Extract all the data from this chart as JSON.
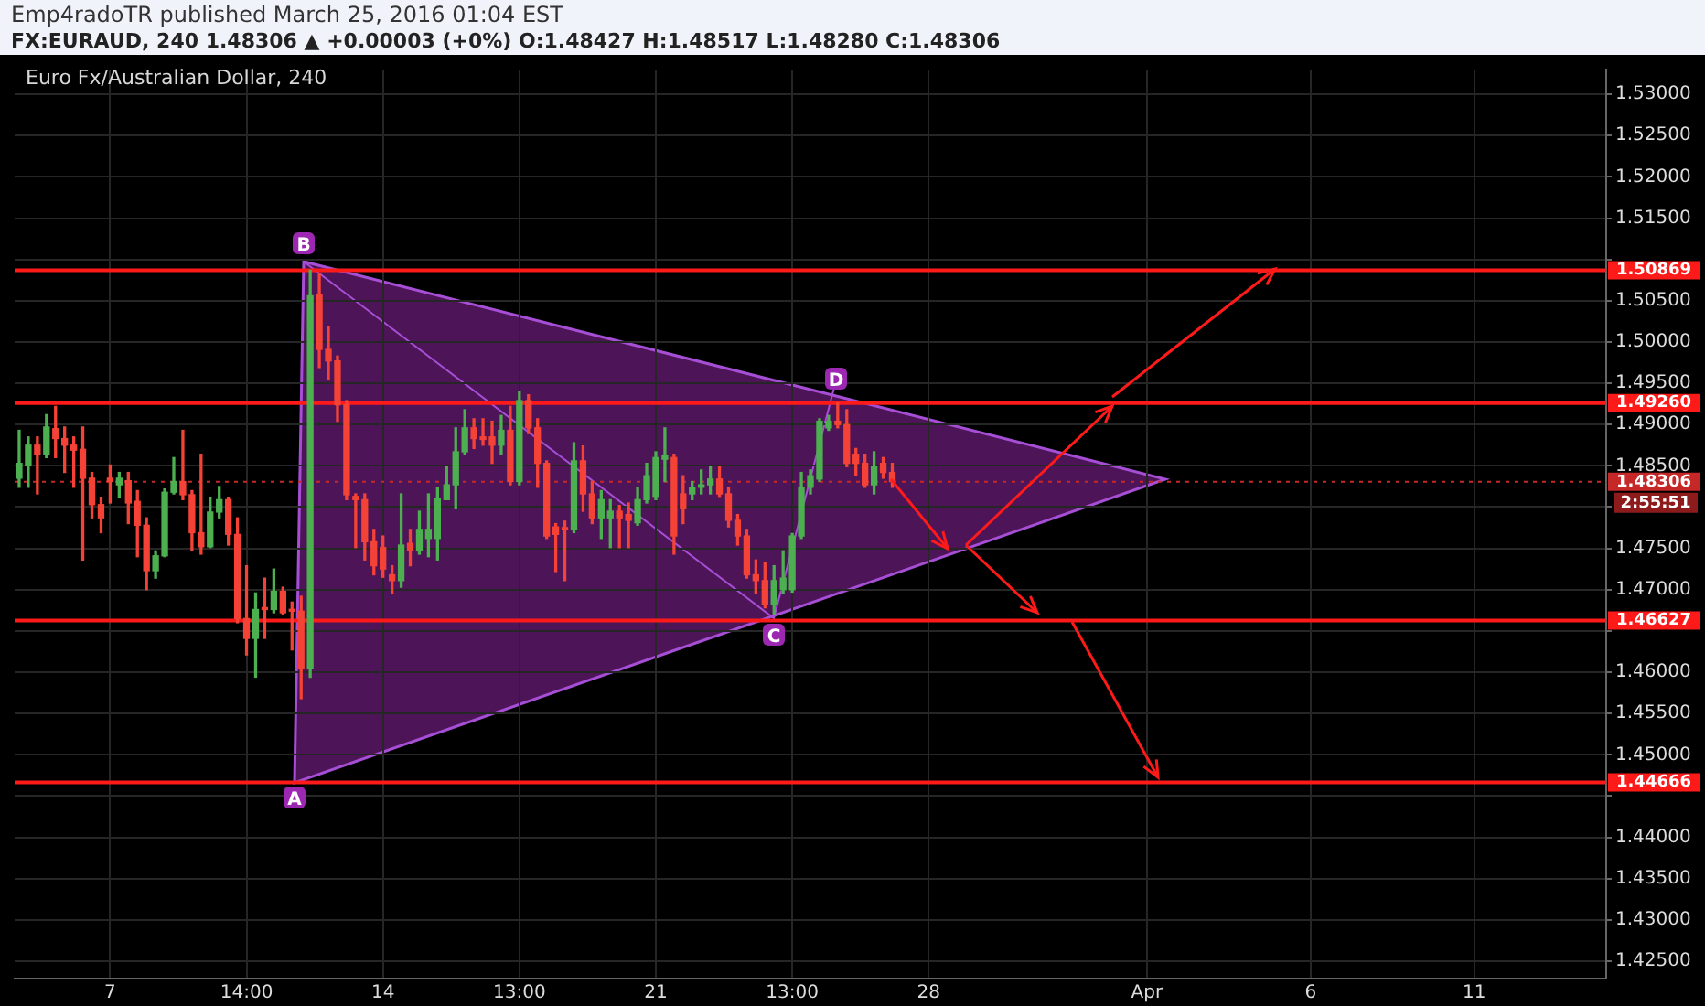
{
  "chart_data": {
    "type": "candlestick",
    "title": "Euro Fx/Australian Dollar, 240",
    "subtitle": "FX:EURAUD, 240 1.48306 ▲ +0.00003 (+0%) O:1.48427 H:1.48517 L:1.48280 C:1.48306",
    "annotations": [
      "Emp4radoTR published March 25, 2016 01:04 EST",
      "2:55:51",
      "A",
      "B",
      "C",
      "D"
    ],
    "categories": [
      null,
      null,
      null,
      null,
      null,
      null,
      null,
      null,
      null,
      null,
      "7",
      null,
      null,
      null,
      null,
      null,
      null,
      null,
      null,
      null,
      null,
      null,
      null,
      null,
      null,
      "14:00",
      null,
      null,
      null,
      null,
      null,
      null,
      null,
      null,
      null,
      null,
      null,
      null,
      null,
      null,
      "14",
      null,
      null,
      null,
      null,
      null,
      null,
      null,
      null,
      null,
      null,
      null,
      null,
      null,
      null,
      "13:00",
      null,
      null,
      null,
      null,
      null,
      null,
      null,
      null,
      null,
      null,
      null,
      null,
      null,
      null,
      "21",
      null,
      null,
      null,
      null,
      null,
      null,
      null,
      null,
      null,
      null,
      null,
      null,
      null,
      null,
      "13:00",
      null,
      null,
      null,
      null,
      null,
      null,
      null,
      null,
      null,
      null,
      null,
      null,
      null,
      null,
      "28",
      null,
      null,
      null,
      null,
      null,
      null,
      null,
      null,
      null,
      null,
      null,
      null,
      null,
      null,
      null,
      null,
      null,
      null,
      null,
      null,
      null,
      null,
      null,
      "Apr",
      null,
      null,
      null,
      null,
      null,
      null,
      null,
      null,
      null,
      null,
      null,
      null,
      null,
      null,
      null,
      null,
      null,
      "6",
      null,
      null,
      null,
      null,
      null,
      null,
      null,
      null,
      null,
      null,
      null,
      null,
      null,
      null,
      null,
      null,
      null,
      "11",
      null,
      null,
      null,
      null,
      null,
      null,
      null,
      null,
      null,
      null,
      null,
      null,
      null,
      null
    ],
    "ohlc": [
      [
        1.4835,
        1.4893,
        1.4824,
        1.4853
      ],
      [
        1.4851,
        1.4885,
        1.4824,
        1.4875
      ],
      [
        1.4875,
        1.4885,
        1.4816,
        1.4864
      ],
      [
        1.4864,
        1.4912,
        1.486,
        1.4897
      ],
      [
        1.4895,
        1.4922,
        1.486,
        1.4883
      ],
      [
        1.4883,
        1.4897,
        1.4842,
        1.4875
      ],
      [
        1.4875,
        1.4885,
        1.4824,
        1.4869
      ],
      [
        1.487,
        1.4897,
        1.4736,
        1.4835
      ],
      [
        1.4835,
        1.4842,
        1.4787,
        1.4803
      ],
      [
        1.4803,
        1.4812,
        1.4769,
        1.4787
      ],
      [
        1.4835,
        1.4851,
        1.4805,
        1.4831
      ],
      [
        1.4827,
        1.4842,
        1.4812,
        1.4835
      ],
      [
        1.4832,
        1.4842,
        1.478,
        1.4805
      ],
      [
        1.4807,
        1.482,
        1.474,
        1.4778
      ],
      [
        1.4778,
        1.4787,
        1.47,
        1.4723
      ],
      [
        1.4723,
        1.4747,
        1.4714,
        1.4741
      ],
      [
        1.4741,
        1.4822,
        1.474,
        1.4818
      ],
      [
        1.4818,
        1.486,
        1.4816,
        1.4831
      ],
      [
        1.4831,
        1.4893,
        1.4809,
        1.4815
      ],
      [
        1.4815,
        1.482,
        1.4747,
        1.4769
      ],
      [
        1.4769,
        1.4864,
        1.4743,
        1.4752
      ],
      [
        1.4752,
        1.4812,
        1.4751,
        1.4794
      ],
      [
        1.4794,
        1.4825,
        1.4787,
        1.4809
      ],
      [
        1.4809,
        1.4812,
        1.4754,
        1.4767
      ],
      [
        1.4767,
        1.4787,
        1.466,
        1.4665
      ],
      [
        1.4665,
        1.4729,
        1.4621,
        1.4641
      ],
      [
        1.4641,
        1.4696,
        1.4594,
        1.4676
      ],
      [
        1.4678,
        1.4714,
        1.4641,
        1.4676
      ],
      [
        1.4676,
        1.4725,
        1.4672,
        1.4698
      ],
      [
        1.4698,
        1.4703,
        1.467,
        1.4672
      ],
      [
        1.4674,
        1.4685,
        1.4627,
        1.4674
      ],
      [
        1.4674,
        1.4692,
        1.4568,
        1.4605
      ],
      [
        1.4605,
        1.5087,
        1.4594,
        1.5056
      ],
      [
        1.5057,
        1.5082,
        1.4969,
        1.4991
      ],
      [
        1.4991,
        1.5019,
        1.4954,
        1.4977
      ],
      [
        1.4977,
        1.4983,
        1.4904,
        1.4924
      ],
      [
        1.4924,
        1.4929,
        1.4809,
        1.4815
      ],
      [
        1.4813,
        1.4816,
        1.4751,
        1.4809
      ],
      [
        1.4809,
        1.4816,
        1.4736,
        1.4758
      ],
      [
        1.4758,
        1.4773,
        1.4718,
        1.4729
      ],
      [
        1.4751,
        1.4765,
        1.4715,
        1.4725
      ],
      [
        1.4718,
        1.4729,
        1.4696,
        1.4711
      ],
      [
        1.4711,
        1.4816,
        1.4703,
        1.4754
      ],
      [
        1.4756,
        1.4773,
        1.4729,
        1.4747
      ],
      [
        1.4747,
        1.4795,
        1.4743,
        1.4773
      ],
      [
        1.4762,
        1.4816,
        1.474,
        1.4773
      ],
      [
        1.4762,
        1.4824,
        1.4736,
        1.481
      ],
      [
        1.4809,
        1.4849,
        1.4809,
        1.4827
      ],
      [
        1.4827,
        1.4896,
        1.4798,
        1.4867
      ],
      [
        1.4867,
        1.4918,
        1.4864,
        1.4896
      ],
      [
        1.4896,
        1.4907,
        1.4871,
        1.4883
      ],
      [
        1.4885,
        1.4907,
        1.4875,
        1.4882
      ],
      [
        1.4885,
        1.4904,
        1.4853,
        1.4875
      ],
      [
        1.4875,
        1.4911,
        1.4864,
        1.4893
      ],
      [
        1.4893,
        1.4922,
        1.4827,
        1.4831
      ],
      [
        1.4831,
        1.494,
        1.4827,
        1.4929
      ],
      [
        1.4929,
        1.4936,
        1.4889,
        1.4896
      ],
      [
        1.4896,
        1.4907,
        1.4824,
        1.4853
      ],
      [
        1.4853,
        1.4856,
        1.4762,
        1.4765
      ],
      [
        1.4776,
        1.478,
        1.4722,
        1.4767
      ],
      [
        1.4773,
        1.4783,
        1.4711,
        1.4773
      ],
      [
        1.4773,
        1.4878,
        1.4769,
        1.4856
      ],
      [
        1.4856,
        1.4874,
        1.4795,
        1.4816
      ],
      [
        1.4816,
        1.4831,
        1.478,
        1.4787
      ],
      [
        1.4787,
        1.482,
        1.4762,
        1.4809
      ],
      [
        1.4787,
        1.4809,
        1.4751,
        1.4795
      ],
      [
        1.4795,
        1.4802,
        1.4751,
        1.4787
      ],
      [
        1.4791,
        1.4805,
        1.4751,
        1.4784
      ],
      [
        1.4781,
        1.4824,
        1.4778,
        1.4809
      ],
      [
        1.4809,
        1.4853,
        1.4805,
        1.4838
      ],
      [
        1.4813,
        1.4867,
        1.4809,
        1.486
      ],
      [
        1.4858,
        1.4896,
        1.4831,
        1.4863
      ],
      [
        1.486,
        1.4864,
        1.4743,
        1.4765
      ],
      [
        1.4816,
        1.4838,
        1.478,
        1.4798
      ],
      [
        1.4816,
        1.4831,
        1.4809,
        1.4824
      ],
      [
        1.4824,
        1.4845,
        1.4816,
        1.4827
      ],
      [
        1.4827,
        1.4849,
        1.4816,
        1.4834
      ],
      [
        1.4834,
        1.4849,
        1.4813,
        1.4816
      ],
      [
        1.4816,
        1.4824,
        1.4776,
        1.4784
      ],
      [
        1.4784,
        1.4791,
        1.4754,
        1.4765
      ],
      [
        1.4765,
        1.4773,
        1.4714,
        1.4718
      ],
      [
        1.4718,
        1.4736,
        1.4696,
        1.4711
      ],
      [
        1.4711,
        1.4733,
        1.4678,
        1.4682
      ],
      [
        1.4682,
        1.4729,
        1.467,
        1.4711
      ],
      [
        1.47,
        1.4747,
        1.4696,
        1.4714
      ],
      [
        1.47,
        1.4768,
        1.4697,
        1.4765
      ],
      [
        1.4765,
        1.4842,
        1.4762,
        1.4824
      ],
      [
        1.4824,
        1.4845,
        1.4816,
        1.4838
      ],
      [
        1.4834,
        1.4907,
        1.4831,
        1.4904
      ],
      [
        1.4896,
        1.4911,
        1.4893,
        1.4904
      ],
      [
        1.4904,
        1.4926,
        1.4896,
        1.49
      ],
      [
        1.49,
        1.4918,
        1.4849,
        1.4853
      ],
      [
        1.4864,
        1.4871,
        1.4838,
        1.4853
      ],
      [
        1.4853,
        1.4864,
        1.4824,
        1.4827
      ],
      [
        1.4827,
        1.4867,
        1.4816,
        1.4849
      ],
      [
        1.4853,
        1.486,
        1.4835,
        1.4842
      ],
      [
        1.4842,
        1.4853,
        1.4824,
        1.4831
      ],
      null,
      null,
      null,
      null,
      null,
      null,
      null,
      null,
      null,
      null,
      null,
      null,
      null,
      null,
      null,
      null,
      null,
      null,
      null,
      null,
      null,
      null,
      null,
      null,
      null,
      null,
      null,
      null,
      null,
      null,
      null,
      null,
      null,
      null,
      null,
      null,
      null,
      null,
      null,
      null,
      null,
      null,
      null,
      null,
      null,
      null,
      null,
      null,
      null,
      null,
      null,
      null,
      null,
      null,
      null,
      null,
      null,
      null,
      null,
      null,
      null,
      null,
      null,
      null,
      null,
      null,
      null,
      null,
      null,
      null,
      null,
      null,
      null,
      null,
      null,
      null,
      null,
      null
    ],
    "colors": [
      "#4caf50",
      "#4caf50",
      "#f44336",
      "#4caf50",
      "#f44336",
      "#f44336",
      "#f44336",
      "#f44336",
      "#f44336",
      "#f44336",
      "#f44336",
      "#4caf50",
      "#f44336",
      "#f44336",
      "#f44336",
      "#4caf50",
      "#4caf50",
      "#4caf50",
      "#f44336",
      "#f44336",
      "#f44336",
      "#4caf50",
      "#4caf50",
      "#f44336",
      "#f44336",
      "#f44336",
      "#4caf50",
      "#f44336",
      "#4caf50",
      "#f44336",
      "#f44336",
      "#f44336",
      "#4caf50",
      "#f44336",
      "#f44336",
      "#f44336",
      "#f44336",
      "#f44336",
      "#f44336",
      "#f44336",
      "#f44336",
      "#f44336",
      "#4caf50",
      "#f44336",
      "#4caf50",
      "#4caf50",
      "#4caf50",
      "#4caf50",
      "#4caf50",
      "#4caf50",
      "#f44336",
      "#f44336",
      "#f44336",
      "#4caf50",
      "#f44336",
      "#4caf50",
      "#f44336",
      "#f44336",
      "#f44336",
      "#f44336",
      "#f44336",
      "#4caf50",
      "#f44336",
      "#f44336",
      "#4caf50",
      "#4caf50",
      "#f44336",
      "#f44336",
      "#4caf50",
      "#4caf50",
      "#4caf50",
      "#4caf50",
      "#f44336",
      "#f44336",
      "#4caf50",
      "#4caf50",
      "#4caf50",
      "#f44336",
      "#f44336",
      "#f44336",
      "#f44336",
      "#f44336",
      "#f44336",
      "#4caf50",
      "#4caf50",
      "#4caf50",
      "#4caf50",
      "#4caf50",
      "#4caf50",
      "#4caf50",
      "#f44336",
      "#f44336",
      "#f44336",
      "#f44336",
      "#4caf50",
      "#f44336",
      "#f44336",
      null,
      null,
      null,
      null,
      null,
      null,
      null,
      null,
      null,
      null,
      null,
      null,
      null,
      null,
      null,
      null,
      null,
      null,
      null,
      null,
      null,
      null,
      null,
      null,
      null,
      null,
      null,
      null,
      null,
      null,
      null,
      null,
      null,
      null,
      null,
      null,
      null,
      null,
      null,
      null,
      null,
      null,
      null,
      null,
      null,
      null,
      null,
      null,
      null,
      null,
      null,
      null,
      null,
      null,
      null,
      null,
      null,
      null,
      null,
      null,
      null,
      null,
      null,
      null,
      null,
      null,
      null,
      null,
      null,
      null,
      null,
      null,
      null,
      null,
      null,
      null,
      null,
      null
    ],
    "ylim": [
      1.4229,
      1.533
    ],
    "yticks": [
      {
        "value": 1.425,
        "label": "1.42500"
      },
      {
        "value": 1.43,
        "label": "1.43000"
      },
      {
        "value": 1.435,
        "label": "1.43500"
      },
      {
        "value": 1.44,
        "label": "1.44000"
      },
      {
        "value": 1.445,
        "label": null
      },
      {
        "value": 1.45,
        "label": "1.45000"
      },
      {
        "value": 1.455,
        "label": "1.45500"
      },
      {
        "value": 1.46,
        "label": "1.46000"
      },
      {
        "value": 1.465,
        "label": null
      },
      {
        "value": 1.47,
        "label": "1.47000"
      },
      {
        "value": 1.475,
        "label": "1.47500"
      },
      {
        "value": 1.48,
        "label": null
      },
      {
        "value": 1.485,
        "label": "1.48500"
      },
      {
        "value": 1.49,
        "label": "1.49000"
      },
      {
        "value": 1.495,
        "label": "1.49500"
      },
      {
        "value": 1.5,
        "label": "1.50000"
      },
      {
        "value": 1.505,
        "label": "1.50500"
      },
      {
        "value": 1.51,
        "label": null
      },
      {
        "value": 1.515,
        "label": "1.51500"
      },
      {
        "value": 1.52,
        "label": "1.52000"
      },
      {
        "value": 1.525,
        "label": "1.52500"
      },
      {
        "value": 1.53,
        "label": "1.53000"
      }
    ],
    "ref_lines": [
      {
        "axis": "y",
        "value": 1.50869,
        "label": "1.50869",
        "color": "#ff1a1a",
        "line_style": "solid"
      },
      {
        "axis": "y",
        "value": 1.4926,
        "label": "1.49260",
        "color": "#ff1a1a",
        "line_style": "solid"
      },
      {
        "axis": "y",
        "value": 1.46627,
        "label": "1.46627",
        "color": "#ff1a1a",
        "line_style": "solid"
      },
      {
        "axis": "y",
        "value": 1.44666,
        "label": "1.44666",
        "color": "#ff1a1a",
        "line_style": "solid"
      },
      {
        "axis": "y",
        "value": 1.48306,
        "label": "1.48306",
        "color": "#c62828",
        "line_style": "dotted"
      }
    ],
    "grid": true,
    "legend": false
  }
}
